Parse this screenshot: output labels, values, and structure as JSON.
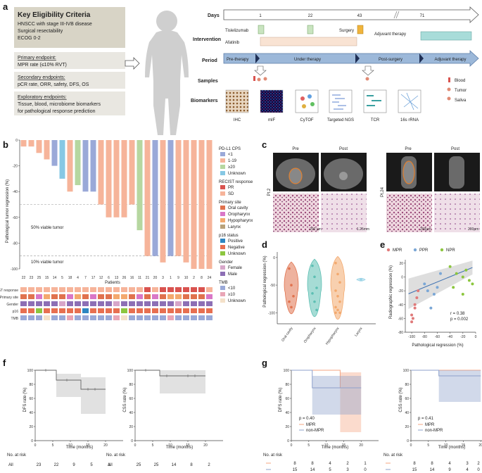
{
  "panel_letters": [
    "a",
    "b",
    "c",
    "d",
    "e",
    "f",
    "g"
  ],
  "panel_a": {
    "criteria_title": "Key Eligibility Criteria",
    "criteria": [
      "HNSCC with stage III-IVB disease",
      "Surgical resectability",
      "ECOG 0-2"
    ],
    "primary_title": "Primary endpoint:",
    "primary": "MPR rate (≤10% RVT)",
    "secondary_title": "Secondary endpoints:",
    "secondary": "pCR rate, ORR, safety, DFS, OS",
    "exploratory_title": "Exploratory endpoints:",
    "exploratory": [
      "Tissue, blood, microbiome biomarkers",
      "for pathological response prediction"
    ],
    "row_labels": {
      "days": "Days",
      "intervention": "Intervention",
      "period": "Period",
      "samples": "Samples",
      "biomarkers": "Biomarkers"
    },
    "day_ticks": [
      "1",
      "22",
      "43",
      "71"
    ],
    "interventions": {
      "tislelizumab": "Tislelizumab",
      "afatinib": "Afatinib",
      "surgery": "Surgery",
      "adjuvant": "Adjuvant therapy"
    },
    "periods": [
      "Pre-therapy",
      "Under therapy",
      "Post-surgery",
      "Adjuvant therapy"
    ],
    "sample_legend": [
      "Blood",
      "Tumor",
      "Saliva"
    ],
    "biomarkers": [
      "IHC",
      "mIF",
      "CyTOF",
      "Targeted NGS",
      "TCR",
      "16s rRNA"
    ],
    "colors": {
      "tislelizumab": "#c9e4c0",
      "surgery": "#f0b43c",
      "afatinib": "#f9e3d3",
      "adjuvant": "#a8dcd9",
      "period": "#9cb8d9",
      "criteria_bg": "#d8d4c6",
      "endpoint_bg": "#e9e7e1"
    }
  },
  "panel_b": {
    "ylabel": "Pathological tumor regression (%)",
    "xlabel": "Patients",
    "ref_lines": [
      "50% viable tumor",
      "10% viable tumor"
    ],
    "track_labels": [
      "RECIST response",
      "Primary site",
      "Gender",
      "p16",
      "TMB"
    ],
    "legend": {
      "pdl1_title": "PD-L1 CPS",
      "pdl1": [
        {
          "label": "<1",
          "color": "#9aa9d8"
        },
        {
          "label": "1-19",
          "color": "#f6b49a"
        },
        {
          "label": "≥20",
          "color": "#b6d7a0"
        },
        {
          "label": "Unknown",
          "color": "#86c8e4"
        }
      ],
      "recist_title": "RECIST response",
      "recist": [
        {
          "label": "PR",
          "color": "#d9534f"
        },
        {
          "label": "SD",
          "color": "#f6b49a"
        }
      ],
      "site_title": "Primary site",
      "site": [
        {
          "label": "Oral cavity",
          "color": "#e0724e"
        },
        {
          "label": "Oropharynx",
          "color": "#d977c7"
        },
        {
          "label": "Hypopharynx",
          "color": "#f3a96e"
        },
        {
          "label": "Larynx",
          "color": "#b9a27a"
        }
      ],
      "p16_title": "p16 status",
      "p16": [
        {
          "label": "Positive",
          "color": "#2e86c1"
        },
        {
          "label": "Negative",
          "color": "#e76f51"
        },
        {
          "label": "Unknown",
          "color": "#8cc63f"
        }
      ],
      "gender_title": "Gender",
      "gender": [
        {
          "label": "Female",
          "color": "#d7a6c9"
        },
        {
          "label": "Male",
          "color": "#8d6fb5"
        }
      ],
      "tmb_title": "TMB",
      "tmb": [
        {
          "label": "<10",
          "color": "#9aa9d8"
        },
        {
          "label": "≥10",
          "color": "#e9a6b6"
        },
        {
          "label": "Unknown",
          "color": "#f4e1c9"
        }
      ]
    }
  },
  "panel_c": {
    "col_labels": [
      "Pre",
      "Post",
      "Pre",
      "Post"
    ],
    "patients": [
      "Pt.2",
      "Pt.24"
    ],
    "scale_bars": [
      "200 μm",
      "1.25mm",
      "200μm",
      "200μm"
    ]
  },
  "panel_d": {
    "ylabel": "Pathological regression (%)"
  },
  "panel_e": {
    "legend": [
      {
        "label": "MPR",
        "color": "#e07a7a"
      },
      {
        "label": "PPR",
        "color": "#7ba7d6"
      },
      {
        "label": "NPR",
        "color": "#8cc63f"
      }
    ],
    "ylabel": "Radiographic regression (%)",
    "xlabel": "Pathological regression (%)",
    "stats": [
      "r = 0.38",
      "p = 0.002"
    ]
  },
  "panel_f": {
    "dfs_ylabel": "DFS rate (%)",
    "css_ylabel": "CSS rate (%)",
    "xlabel": "Time (months)",
    "risk_title": "No. at risk",
    "risk_group": "All",
    "dfs_risk": [
      "23",
      "22",
      "9",
      "5",
      "1"
    ],
    "css_risk": [
      "25",
      "25",
      "14",
      "8",
      "2"
    ]
  },
  "panel_g": {
    "dfs_ylabel": "DFS rate (%)",
    "css_ylabel": "CSS rate (%)",
    "xlabel": "Time (months)",
    "dfs_p": "p = 0.40",
    "css_p": "p = 0.41",
    "groups": [
      "MPR",
      "non-MPR"
    ],
    "risk_title": "No. at risk",
    "dfs_risk": [
      [
        "8",
        "8",
        "4",
        "2",
        "1"
      ],
      [
        "15",
        "14",
        "5",
        "3",
        "0"
      ]
    ],
    "css_risk": [
      [
        "8",
        "8",
        "4",
        "3",
        "2"
      ],
      [
        "15",
        "14",
        "9",
        "4",
        "0"
      ]
    ]
  },
  "chart_data": [
    {
      "id": "b",
      "type": "bar",
      "title": "Pathological tumor regression waterfall",
      "ylabel": "Pathological tumor regression (%)",
      "xlabel": "Patients",
      "ylim": [
        -100,
        0
      ],
      "categories": [
        "22",
        "23",
        "25",
        "15",
        "14",
        "5",
        "18",
        "4",
        "7",
        "17",
        "12",
        "6",
        "13",
        "26",
        "16",
        "11",
        "21",
        "20",
        "3",
        "1",
        "9",
        "10",
        "2",
        "8",
        "24"
      ],
      "values": [
        -5,
        -5,
        -10,
        -15,
        -20,
        -30,
        -40,
        -35,
        -40,
        -40,
        -50,
        -60,
        -60,
        -60,
        -50,
        -70,
        -90,
        -90,
        -95,
        -90,
        -90,
        -95,
        -100,
        -100,
        -100
      ],
      "pdl1": [
        "1-19",
        "1-19",
        "1-19",
        "1-19",
        "<1",
        "Unknown",
        "1-19",
        "≥20",
        "<1",
        "<1",
        "1-19",
        "1-19",
        "1-19",
        "1-19",
        "1-19",
        "≥20",
        "1-19",
        "<1",
        "1-19",
        "<1",
        "1-19",
        "1-19",
        "1-19",
        "1-19",
        "1-19"
      ],
      "y_ticks": [
        0,
        -20,
        -40,
        -60,
        -80,
        -100
      ]
    },
    {
      "id": "d",
      "type": "violin",
      "ylabel": "Pathological regression (%)",
      "categories": [
        "Oral cavity",
        "Oropharynx",
        "Hypopharynx",
        "Larynx"
      ],
      "points": [
        [
          -20,
          -50,
          -70,
          -80,
          -90
        ],
        [
          -15,
          -35,
          -55,
          -65,
          -80,
          -95
        ],
        [
          -10,
          -30,
          -45,
          -60,
          -70,
          -80,
          -90,
          -95,
          -100,
          -100
        ],
        [
          -40
        ]
      ],
      "ylim": [
        -120,
        10
      ],
      "y_ticks": [
        0,
        -50,
        -100
      ]
    },
    {
      "id": "e",
      "type": "scatter",
      "xlabel": "Pathological regression (%)",
      "ylabel": "Radiographic regression (%)",
      "xlim": [
        -110,
        0
      ],
      "ylim": [
        -80,
        25
      ],
      "x_ticks": [
        -100,
        -80,
        -60,
        -40,
        -20,
        0
      ],
      "y_ticks": [
        20,
        0,
        -20,
        -40,
        -60,
        -80
      ],
      "series": [
        {
          "name": "MPR",
          "x": [
            -100,
            -98,
            -95,
            -92,
            -90,
            -100,
            -95
          ],
          "y": [
            -55,
            -60,
            -45,
            -30,
            -20,
            -65,
            -40
          ]
        },
        {
          "name": "PPR",
          "x": [
            -80,
            -75,
            -70,
            -65,
            -60,
            -55
          ],
          "y": [
            -10,
            -20,
            -45,
            -25,
            -15,
            5
          ]
        },
        {
          "name": "NPR",
          "x": [
            -40,
            -30,
            -20,
            -15,
            -10,
            -5,
            -20,
            -35
          ],
          "y": [
            15,
            5,
            0,
            10,
            -5,
            -10,
            -25,
            -15
          ]
        }
      ],
      "r": 0.38,
      "p": 0.002
    },
    {
      "id": "f_dfs",
      "type": "line",
      "ylabel": "DFS rate (%)",
      "xlabel": "Time (months)",
      "xlim": [
        0,
        25
      ],
      "ylim": [
        0,
        100
      ],
      "x_ticks": [
        0,
        5,
        10,
        15,
        20
      ],
      "y_ticks": [
        0,
        20,
        40,
        60,
        80,
        100
      ],
      "x": [
        0,
        5,
        6,
        12,
        13,
        20
      ],
      "y": [
        100,
        100,
        86,
        86,
        73,
        73
      ],
      "ci_upper": [
        100,
        100,
        95,
        95,
        90,
        90
      ],
      "ci_lower": [
        100,
        100,
        62,
        62,
        38,
        38
      ]
    },
    {
      "id": "f_css",
      "type": "line",
      "ylabel": "CSS rate (%)",
      "xlabel": "Time (months)",
      "xlim": [
        0,
        25
      ],
      "ylim": [
        0,
        100
      ],
      "x_ticks": [
        0,
        5,
        10,
        15,
        20
      ],
      "y_ticks": [
        0,
        20,
        40,
        60,
        80,
        100
      ],
      "x": [
        0,
        6,
        7,
        20
      ],
      "y": [
        100,
        100,
        92,
        92
      ],
      "ci_upper": [
        100,
        100,
        100,
        100
      ],
      "ci_lower": [
        100,
        100,
        67,
        67
      ]
    },
    {
      "id": "g_dfs",
      "type": "line",
      "ylabel": "DFS rate (%)",
      "xlabel": "Time (months)",
      "xlim": [
        0,
        25
      ],
      "ylim": [
        0,
        100
      ],
      "x_ticks": [
        0,
        5,
        10,
        15,
        20
      ],
      "y_ticks": [
        0,
        20,
        40,
        60,
        80,
        100
      ],
      "series": [
        {
          "name": "MPR",
          "x": [
            0,
            13,
            14,
            20
          ],
          "y": [
            100,
            100,
            75,
            75
          ],
          "ci_lower": 12,
          "ci_upper": 97
        },
        {
          "name": "non-MPR",
          "x": [
            0,
            5,
            6,
            20
          ],
          "y": [
            100,
            100,
            75,
            75
          ],
          "ci_lower": 37,
          "ci_upper": 92
        }
      ],
      "p": 0.4
    },
    {
      "id": "g_css",
      "type": "line",
      "ylabel": "CSS rate (%)",
      "xlabel": "Time (months)",
      "xlim": [
        0,
        25
      ],
      "ylim": [
        0,
        100
      ],
      "x_ticks": [
        0,
        5,
        10,
        15,
        20
      ],
      "y_ticks": [
        0,
        20,
        40,
        60,
        80,
        100
      ],
      "series": [
        {
          "name": "MPR",
          "x": [
            0,
            20
          ],
          "y": [
            100,
            100
          ]
        },
        {
          "name": "non-MPR",
          "x": [
            0,
            7,
            8,
            20
          ],
          "y": [
            100,
            100,
            92,
            92
          ],
          "ci_lower": 55,
          "ci_upper": 100
        }
      ],
      "p": 0.41
    }
  ]
}
